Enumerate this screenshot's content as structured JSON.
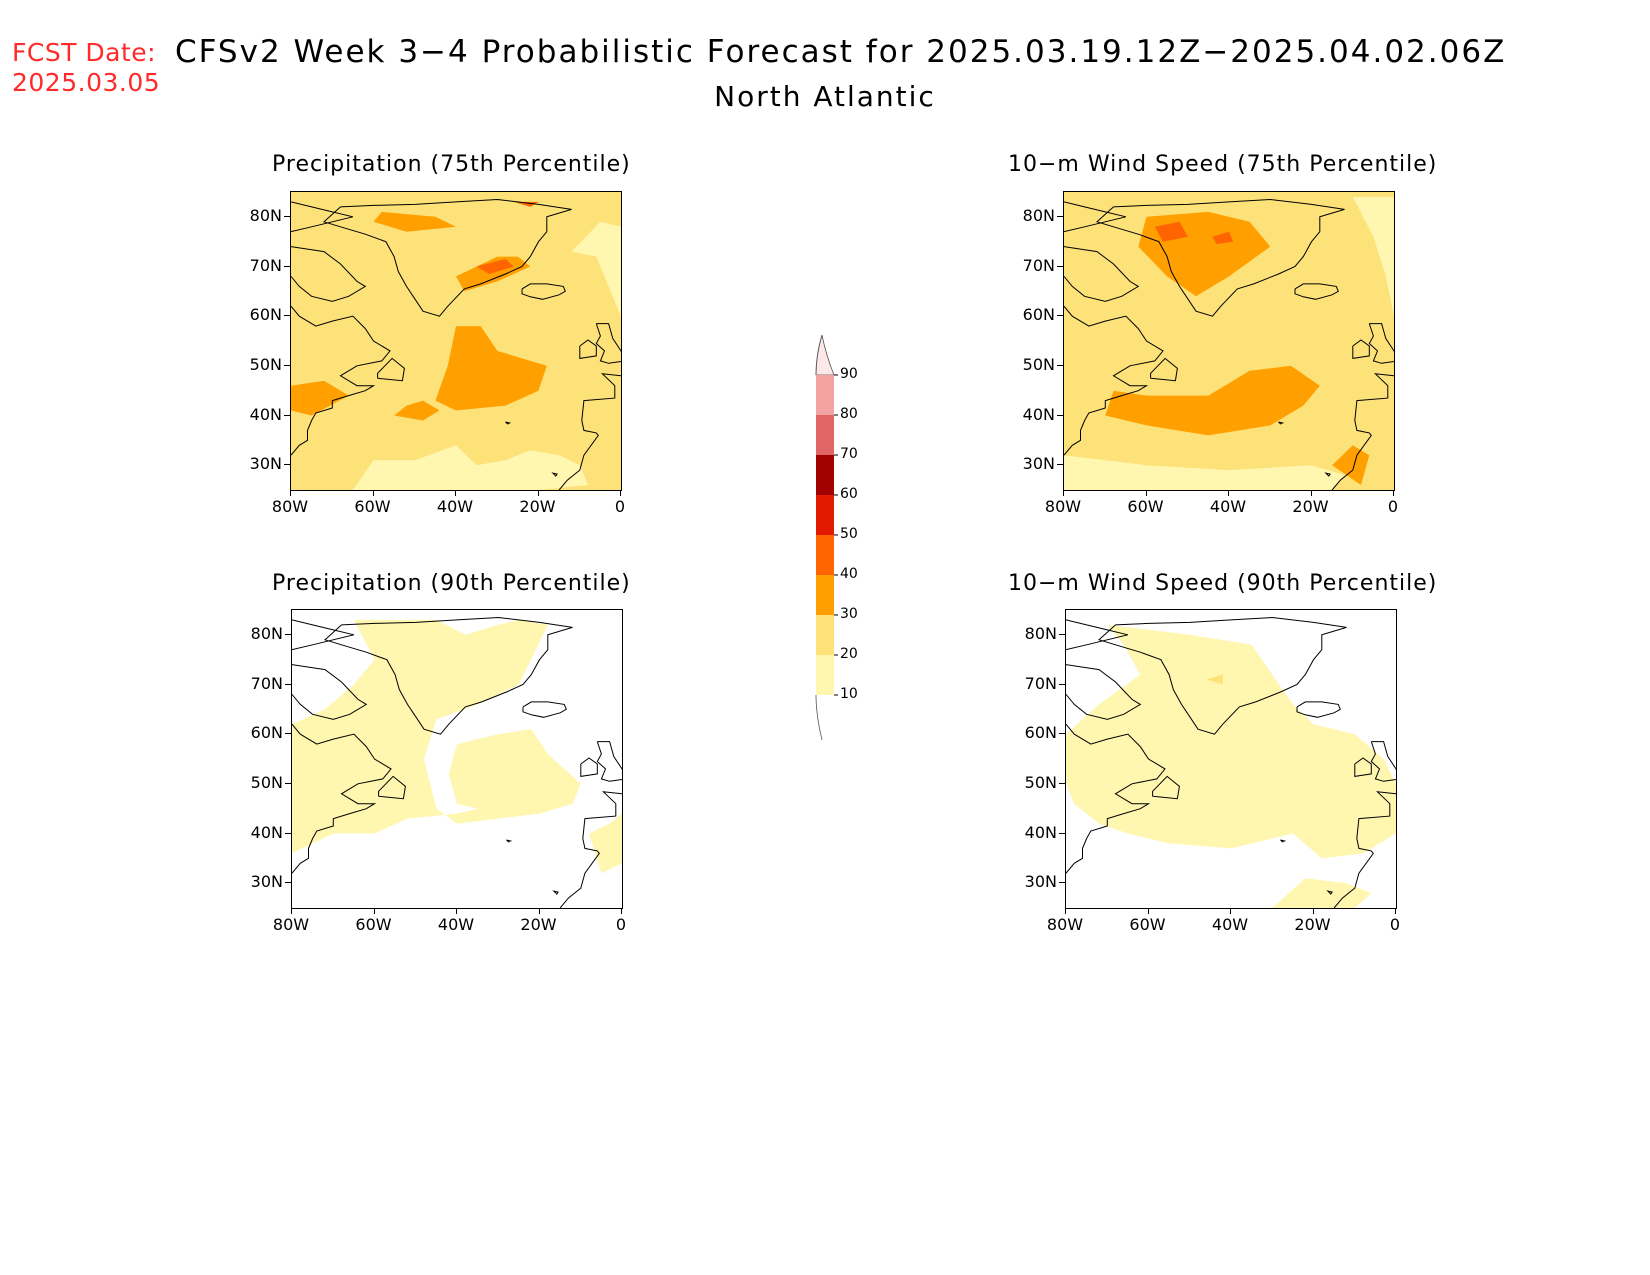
{
  "header": {
    "fcst_label": "FCST Date:",
    "fcst_date": "2025.03.05",
    "title": "CFSv2 Week 3−4 Probabilistic Forecast for 2025.03.19.12Z−2025.04.02.06Z",
    "subtitle": "North Atlantic"
  },
  "panels": [
    {
      "title": "Precipitation (75th Percentile)",
      "variable": "precipitation",
      "percentile": "75th"
    },
    {
      "title": "10−m Wind Speed (75th Percentile)",
      "variable": "wind",
      "percentile": "75th"
    },
    {
      "title": "Precipitation (90th Percentile)",
      "variable": "precipitation",
      "percentile": "90th"
    },
    {
      "title": "10−m Wind Speed (90th Percentile)",
      "variable": "wind",
      "percentile": "90th"
    }
  ],
  "axes": {
    "lat_labels": [
      "80N",
      "70N",
      "60N",
      "50N",
      "40N",
      "30N"
    ],
    "lon_labels": [
      "80W",
      "60W",
      "40W",
      "20W",
      "0"
    ]
  },
  "colorbar": {
    "labels": [
      "90",
      "80",
      "70",
      "60",
      "50",
      "40",
      "30",
      "20",
      "10"
    ],
    "colors": [
      "#fde7e7",
      "#f4a3a3",
      "#e06666",
      "#a00000",
      "#e31a00",
      "#ff6400",
      "#ffa000",
      "#fde27a",
      "#fff6b0"
    ]
  },
  "map_colors": {
    "c10_20": "#fff6b0",
    "c20_30": "#fde27a",
    "c30_40": "#ffa000",
    "c40_50": "#ff6400",
    "c50_60": "#e31a00",
    "c60_70": "#a00000",
    "land_outline": "#000000"
  }
}
